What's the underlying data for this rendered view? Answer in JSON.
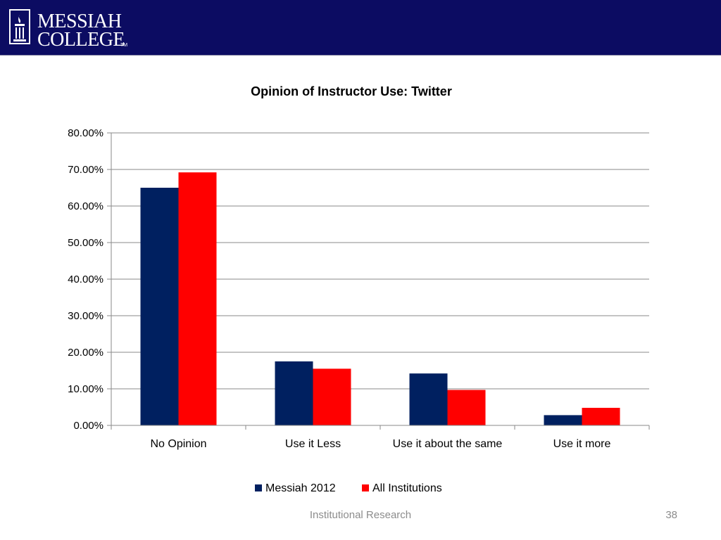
{
  "header": {
    "logo_line1": "MESSIAH",
    "logo_line2": "COLLEGE",
    "logo_tm": "TM",
    "background_color": "#0c0c62"
  },
  "chart_data": {
    "type": "bar",
    "title": "Opinion of Instructor Use: Twitter",
    "categories": [
      "No Opinion",
      "Use it Less",
      "Use it about the same",
      "Use it more"
    ],
    "series": [
      {
        "name": "Messiah 2012",
        "color": "#002060",
        "values": [
          0.65,
          0.175,
          0.142,
          0.028
        ]
      },
      {
        "name": "All Institutions",
        "color": "#ff0000",
        "values": [
          0.692,
          0.155,
          0.097,
          0.048
        ]
      }
    ],
    "ylim": [
      0,
      0.8
    ],
    "yticks": [
      0,
      0.1,
      0.2,
      0.3,
      0.4,
      0.5,
      0.6,
      0.7,
      0.8
    ],
    "ytick_labels": [
      "0.00%",
      "10.00%",
      "20.00%",
      "30.00%",
      "40.00%",
      "50.00%",
      "60.00%",
      "70.00%",
      "80.00%"
    ],
    "grid": true,
    "legend_position": "bottom"
  },
  "footer": {
    "label": "Institutional Research",
    "page_number": "38"
  }
}
